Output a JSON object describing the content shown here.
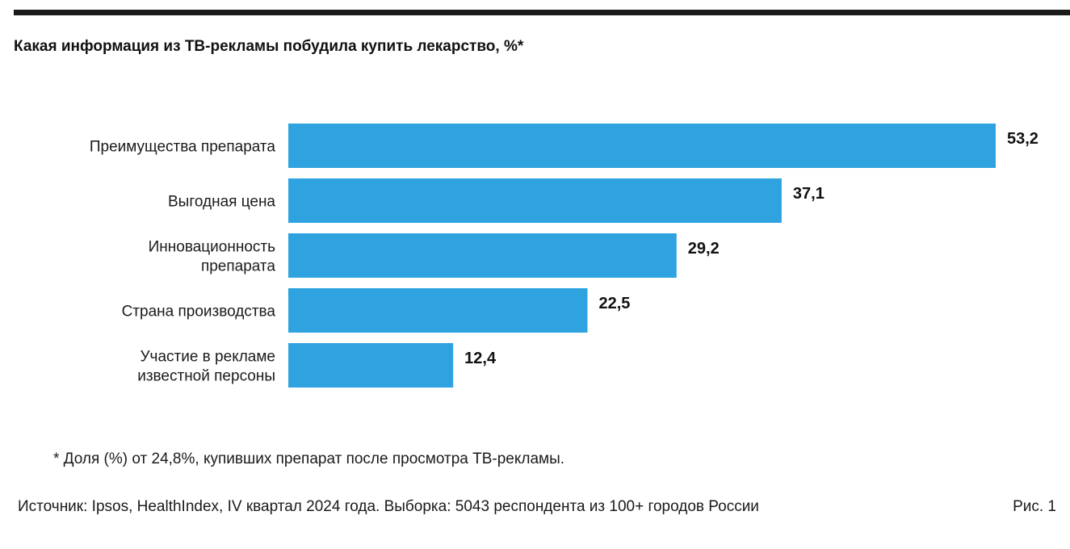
{
  "chart_data": {
    "type": "bar",
    "orientation": "horizontal",
    "title": "Какая информация из ТВ-рекламы побудила купить лекарство, %*",
    "categories": [
      [
        "Преимущества препарата"
      ],
      [
        "Выгодная цена"
      ],
      [
        "Инновационность",
        "препарата"
      ],
      [
        "Страна производства"
      ],
      [
        "Участие в рекламе",
        "известной персоны"
      ]
    ],
    "values": [
      53.2,
      37.1,
      29.2,
      22.5,
      12.4
    ],
    "value_labels": [
      "53,2",
      "37,1",
      "29,2",
      "22,5",
      "12,4"
    ],
    "xlim": [
      0,
      53.2
    ],
    "bar_color": "#2ea3df",
    "grid": false,
    "legend": "none"
  },
  "footnote": "* Доля (%) от 24,8%, купивших препарат после просмотра ТВ-рекламы.",
  "source": "Источник: Ipsos, HealthIndex, IV квартал 2024 года. Выборка: 5043 респондента из 100+ городов России",
  "figure_label": "Рис. 1"
}
